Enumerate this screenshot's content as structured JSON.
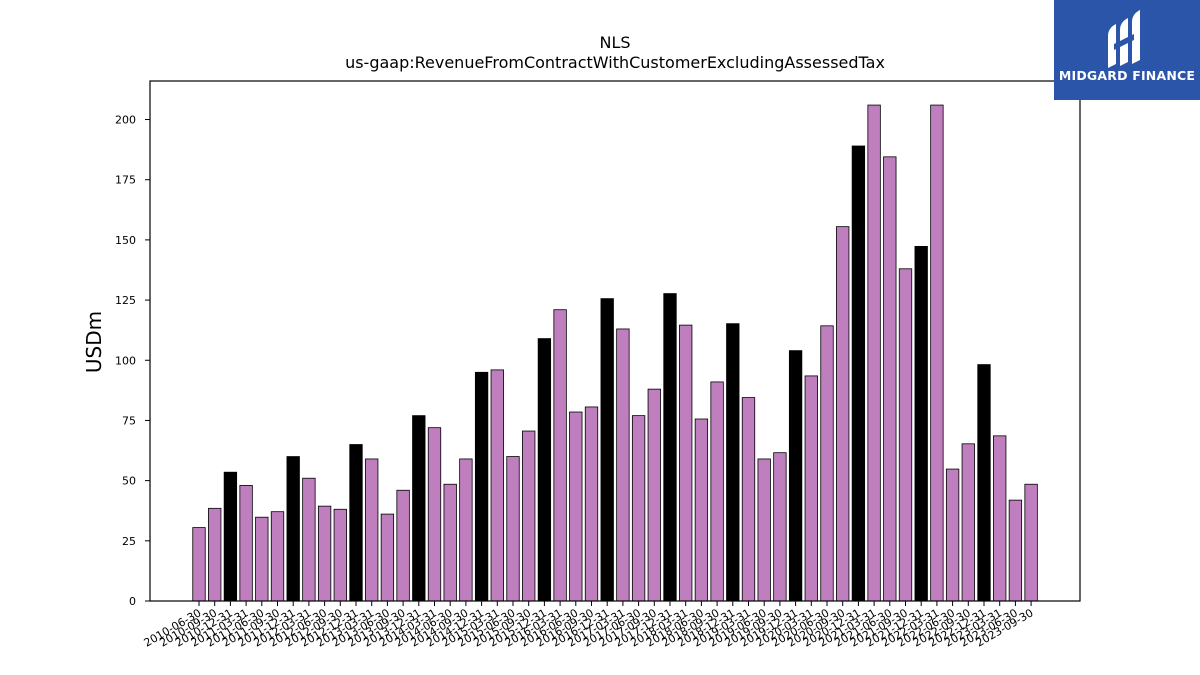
{
  "chart_data": {
    "type": "bar",
    "title": "NLS",
    "subtitle": "us-gaap:RevenueFromContractWithCustomerExcludingAssessedTax",
    "ylabel": "USDm",
    "xlabel": "",
    "ylim": [
      0,
      216
    ],
    "yticks": [
      0,
      25,
      50,
      75,
      100,
      125,
      150,
      175,
      200
    ],
    "grid": false,
    "colors": {
      "quarter": "#bf7fbf",
      "annual": "#000000"
    },
    "categories": [
      "2010-06-30",
      "2010-09-30",
      "2010-12-31",
      "2011-03-31",
      "2011-06-30",
      "2011-09-30",
      "2011-12-31",
      "2012-03-31",
      "2012-06-30",
      "2012-09-30",
      "2012-12-31",
      "2013-03-31",
      "2013-06-30",
      "2013-09-30",
      "2013-12-31",
      "2014-03-31",
      "2014-06-30",
      "2014-09-30",
      "2014-12-31",
      "2015-03-31",
      "2015-06-30",
      "2015-09-30",
      "2015-12-31",
      "2016-03-31",
      "2016-06-30",
      "2016-09-30",
      "2016-12-31",
      "2017-03-31",
      "2017-06-30",
      "2017-09-30",
      "2017-12-31",
      "2018-03-31",
      "2018-06-30",
      "2018-09-30",
      "2018-12-31",
      "2019-03-31",
      "2019-06-30",
      "2019-09-30",
      "2019-12-31",
      "2020-03-31",
      "2020-06-30",
      "2020-09-30",
      "2020-12-31",
      "2021-03-31",
      "2021-06-30",
      "2021-09-30",
      "2021-12-31",
      "2022-03-31",
      "2022-06-30",
      "2022-09-30",
      "2022-12-31",
      "2023-03-31",
      "2023-06-30",
      "2023-09-30"
    ],
    "values": [
      30.5,
      38.5,
      53.5,
      48,
      34.8,
      37.1,
      60,
      51,
      39.4,
      38.1,
      65,
      59,
      36.1,
      46,
      77,
      72,
      48.5,
      59,
      95,
      96,
      60,
      70.6,
      109,
      121,
      78.5,
      80.6,
      125.6,
      113,
      77,
      88,
      127.7,
      114.6,
      75.6,
      91,
      115.2,
      84.5,
      59,
      61.6,
      104,
      93.5,
      114.3,
      155.5,
      189,
      206,
      184.5,
      138,
      147.3,
      206,
      54.8,
      65.3,
      98.2,
      68.6,
      41.9,
      48.5
    ],
    "highlighted": [
      "2010-12-31",
      "2011-12-31",
      "2012-12-31",
      "2013-12-31",
      "2014-12-31",
      "2015-12-31",
      "2016-12-31",
      "2017-12-31",
      "2018-12-31",
      "2019-12-31",
      "2020-12-31",
      "2021-12-31",
      "2022-12-31"
    ]
  },
  "logo": {
    "text": "MIDGARD FINANCE",
    "background": "#2a55a8"
  }
}
